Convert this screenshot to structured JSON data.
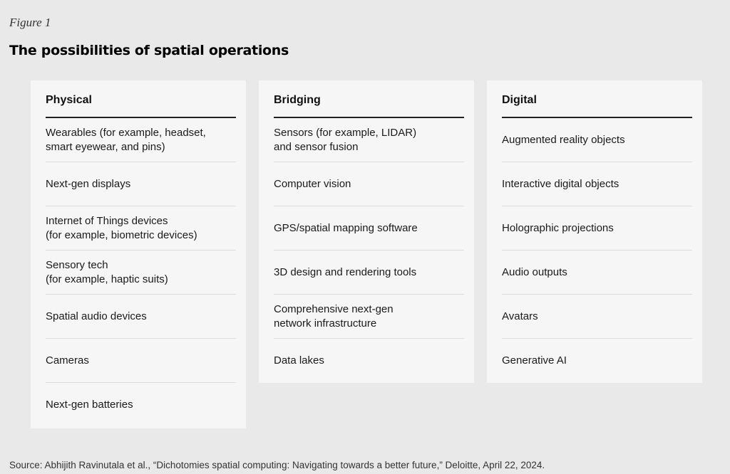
{
  "figure_label": "Figure 1",
  "title": "The possibilities of spatial operations",
  "columns": [
    {
      "heading": "Physical",
      "items": [
        "Wearables (for example, headset,\nsmart eyewear, and pins)",
        "Next-gen displays",
        "Internet of Things devices\n(for example, biometric devices)",
        "Sensory tech\n(for example, haptic suits)",
        "Spatial audio devices",
        "Cameras",
        "Next-gen batteries"
      ]
    },
    {
      "heading": "Bridging",
      "items": [
        "Sensors (for example, LIDAR)\nand sensor fusion",
        "Computer vision",
        "GPS/spatial mapping software",
        "3D design and rendering tools",
        "Comprehensive next-gen\nnetwork infrastructure",
        "Data lakes"
      ]
    },
    {
      "heading": "Digital",
      "items": [
        "Augmented reality objects",
        "Interactive digital objects",
        "Holographic projections",
        "Audio outputs",
        "Avatars",
        "Generative AI"
      ]
    }
  ],
  "source": "Source: Abhijith Ravinutala et al., “Dichotomies spatial computing: Navigating towards a better future,” Deloitte, April 22, 2024."
}
